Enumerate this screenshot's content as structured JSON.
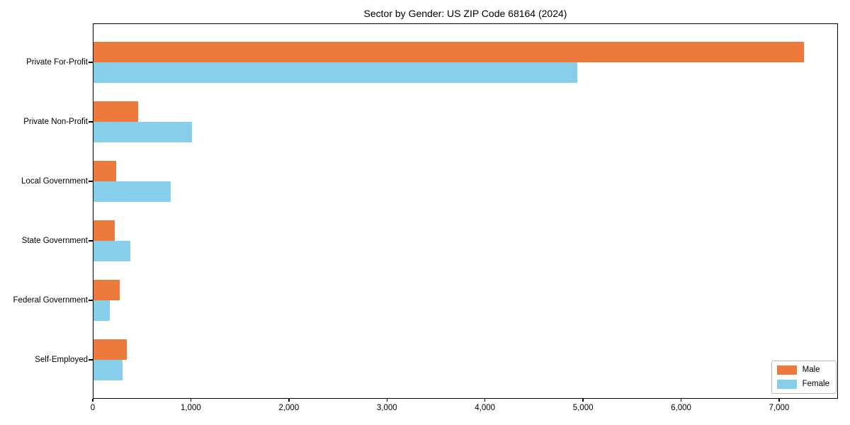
{
  "chart_data": {
    "type": "bar",
    "orientation": "horizontal",
    "title": "Sector by Gender: US ZIP Code 68164 (2024)",
    "categories": [
      "Private For-Profit",
      "Private Non-Profit",
      "Local Government",
      "State Government",
      "Federal Government",
      "Self-Employed"
    ],
    "series": [
      {
        "name": "Male",
        "color": "#ec7a3c",
        "values": [
          7250,
          460,
          240,
          225,
          275,
          350
        ]
      },
      {
        "name": "Female",
        "color": "#87ceeb",
        "values": [
          4940,
          1010,
          795,
          380,
          170,
          300
        ]
      }
    ],
    "xlabel": "",
    "ylabel": "",
    "xlim": [
      0,
      7600
    ],
    "x_ticks": [
      0,
      1000,
      2000,
      3000,
      4000,
      5000,
      6000,
      7000
    ],
    "x_tick_labels": [
      "0",
      "1,000",
      "2,000",
      "3,000",
      "4,000",
      "5,000",
      "6,000",
      "7,000"
    ],
    "grid": false,
    "legend_position": "lower right",
    "axis_color": "#000000"
  }
}
